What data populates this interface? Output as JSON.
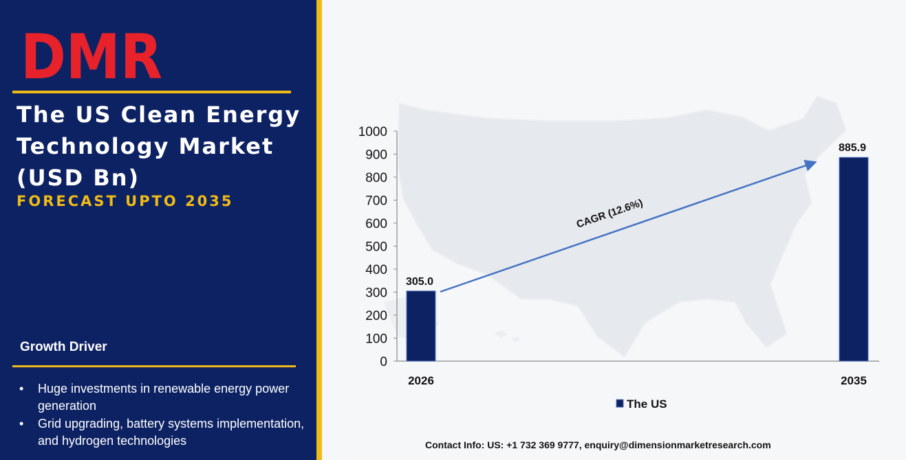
{
  "logo": {
    "text": "DMR"
  },
  "header": {
    "title_lines": [
      "The US Clean Energy",
      "Technology Market",
      "(USD Bn)"
    ],
    "subtitle": "FORECAST UPTO 2035"
  },
  "growth_driver": {
    "title": "Growth Driver",
    "bullet_glyph": "•",
    "items": [
      "Huge investments in renewable energy power generation",
      "Grid upgrading, battery systems implementation, and hydrogen technologies"
    ]
  },
  "contact": "Contact Info: US: +1 732 369 9777, enquiry@dimensionmarketresearch.com",
  "colors": {
    "navy": "#0d2263",
    "gold": "#f0bb16",
    "bar": "#0d2263",
    "arrow": "#4472c4",
    "logo_red": "#e8222a",
    "logo_grey": "#c9ccd1"
  },
  "chart_data": {
    "type": "bar",
    "categories": [
      "2026",
      "2035"
    ],
    "series": [
      {
        "name": "The US",
        "values": [
          305.0,
          885.9
        ]
      }
    ],
    "data_labels": [
      "305.0",
      "885.9"
    ],
    "ylim": [
      0,
      1000
    ],
    "yticks": [
      0,
      100,
      200,
      300,
      400,
      500,
      600,
      700,
      800,
      900,
      1000
    ],
    "annotation": "CAGR (12.6%)",
    "legend": "bottom",
    "grid": false
  }
}
